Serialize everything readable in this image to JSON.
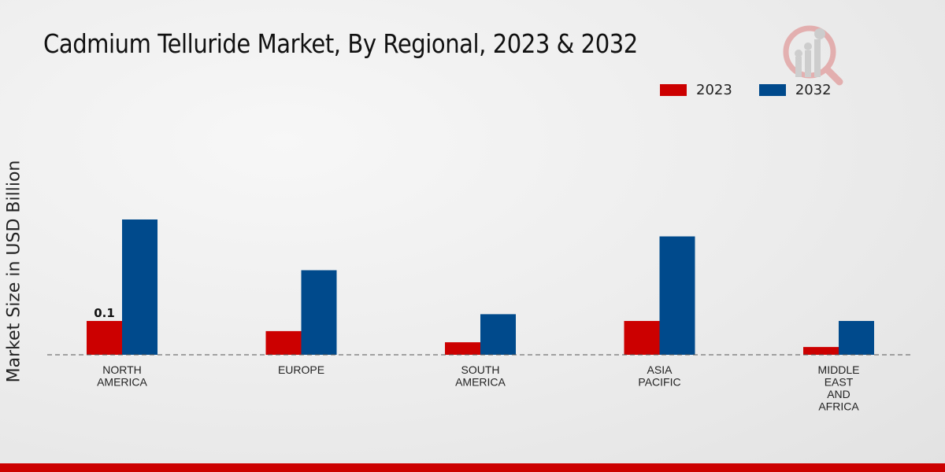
{
  "chart_data": {
    "type": "bar",
    "title": "Cadmium Telluride Market, By Regional, 2023 & 2032",
    "xlabel": "",
    "ylabel": "Market Size in USD Billion",
    "categories": [
      "NORTH\nAMERICA",
      "EUROPE",
      "SOUTH\nAMERICA",
      "ASIA\nPACIFIC",
      "MIDDLE\nEAST\nAND\nAFRICA"
    ],
    "series": [
      {
        "name": "2023",
        "color": "#cc0000",
        "values": [
          0.1,
          0.07,
          0.037,
          0.1,
          0.023
        ]
      },
      {
        "name": "2032",
        "color": "#004a8c",
        "values": [
          0.4,
          0.25,
          0.12,
          0.35,
          0.1
        ]
      }
    ],
    "data_labels": [
      {
        "series": "2023",
        "category_index": 0,
        "text": "0.1"
      }
    ],
    "ylim": [
      0,
      0.45
    ],
    "grid": false,
    "legend_placement": "top-right"
  }
}
